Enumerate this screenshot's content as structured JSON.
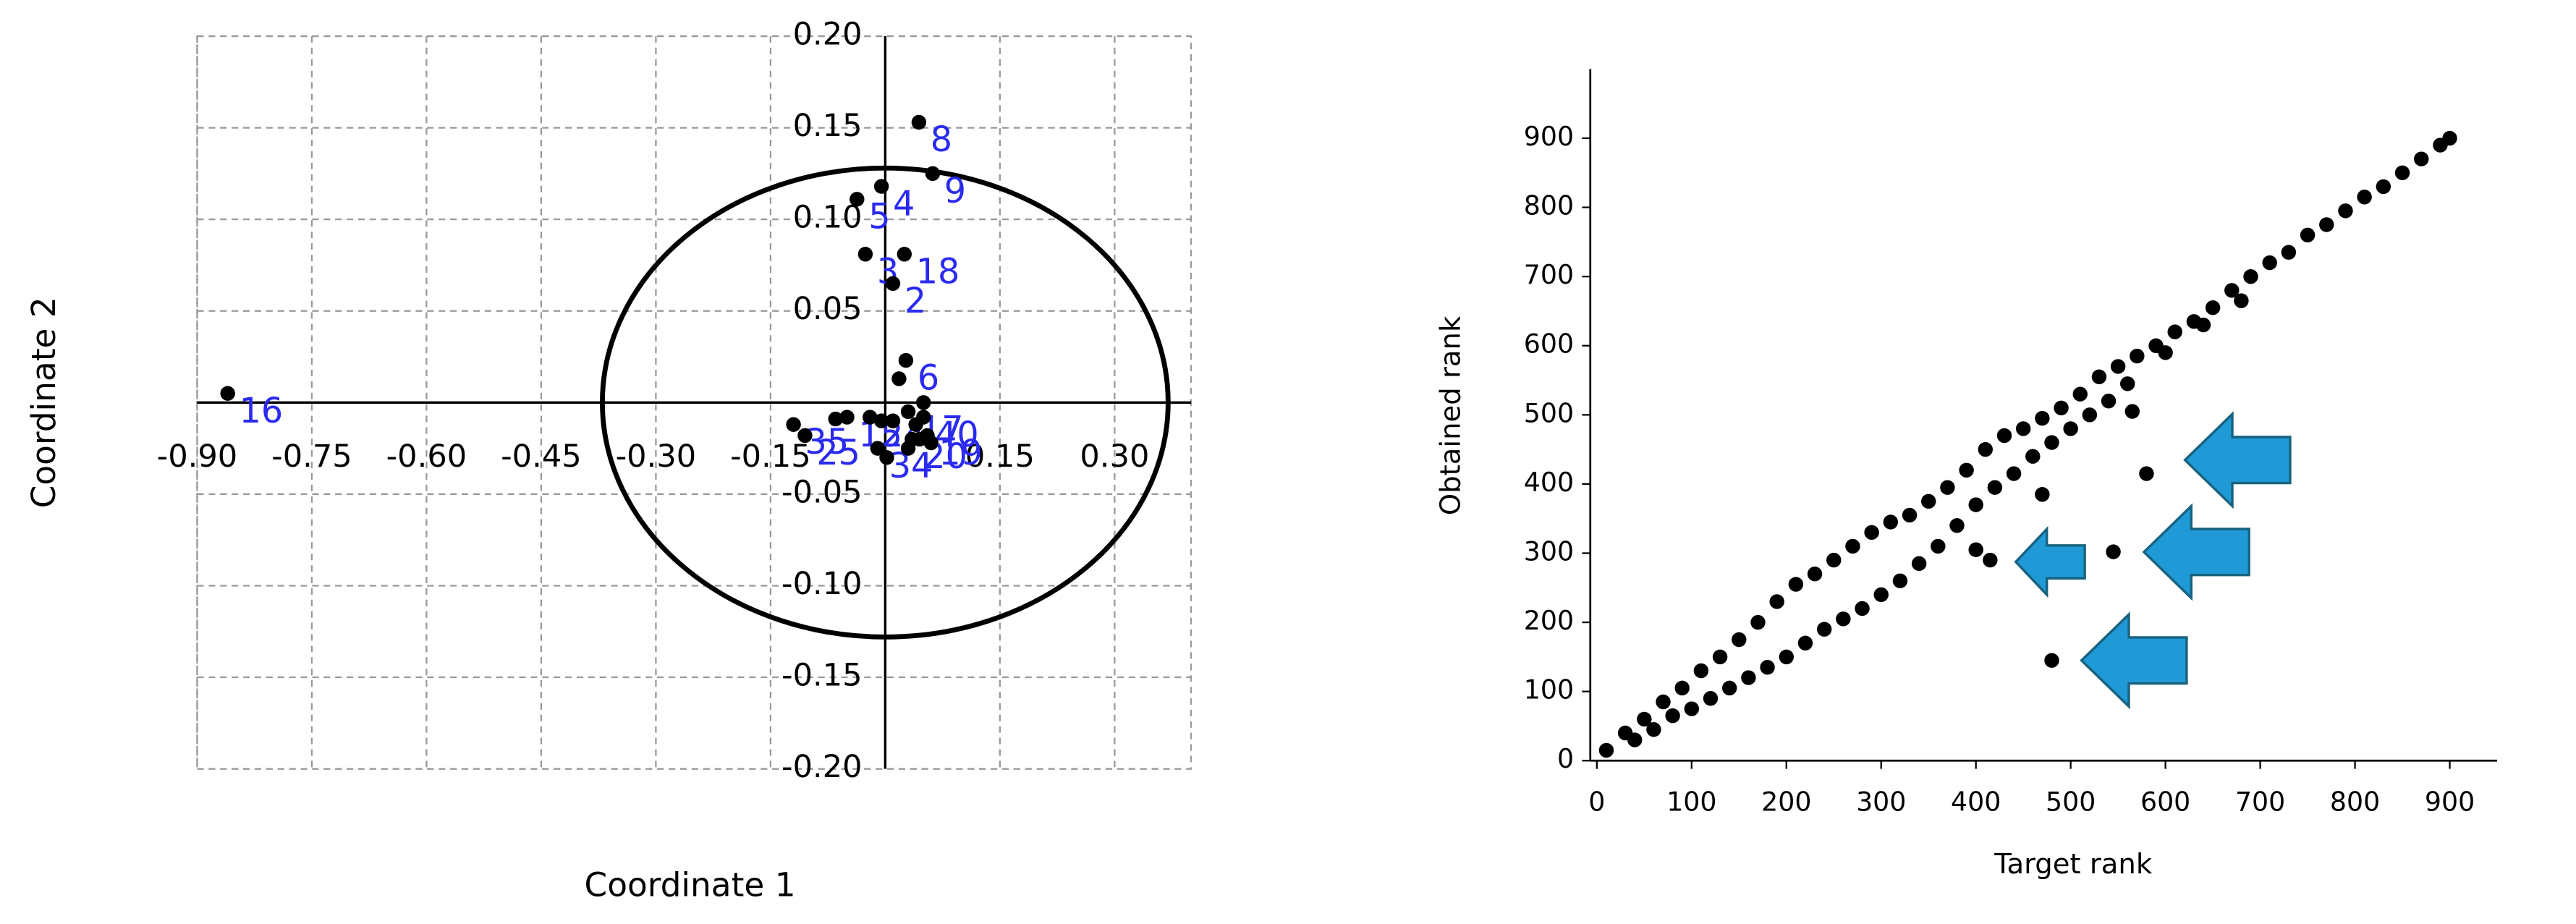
{
  "chart_data": [
    {
      "type": "scatter",
      "x_label": "Coordinate 1",
      "y_label": "Coordinate 2",
      "xlim": [
        -0.9,
        0.4
      ],
      "ylim": [
        -0.2,
        0.2
      ],
      "xticks": [
        {
          "value": -0.9,
          "label": "-0.90"
        },
        {
          "value": -0.75,
          "label": "-0.75"
        },
        {
          "value": -0.6,
          "label": "-0.60"
        },
        {
          "value": -0.45,
          "label": "-0.45"
        },
        {
          "value": -0.3,
          "label": "-0.30"
        },
        {
          "value": -0.15,
          "label": "-0.15"
        },
        {
          "value": 0.15,
          "label": "0.15"
        },
        {
          "value": 0.3,
          "label": "0.30"
        }
      ],
      "yticks": [
        {
          "value": -0.2,
          "label": "-0.20"
        },
        {
          "value": -0.15,
          "label": "-0.15"
        },
        {
          "value": -0.1,
          "label": "-0.10"
        },
        {
          "value": -0.05,
          "label": "-0.05"
        },
        {
          "value": 0.05,
          "label": "0.05"
        },
        {
          "value": 0.1,
          "label": "0.10"
        },
        {
          "value": 0.15,
          "label": "0.15"
        },
        {
          "value": 0.2,
          "label": "0.20"
        }
      ],
      "grid": true,
      "color": "#000000",
      "label_color": "#2a2af0",
      "ellipse_radii": [
        0.37,
        0.128
      ],
      "x": [
        -0.86,
        0.044,
        0.062,
        -0.037,
        -0.005,
        -0.026,
        0.025,
        0.01,
        0.027,
        0.018,
        -0.12,
        -0.105,
        -0.05,
        -0.02,
        0.03,
        0.05,
        -0.01,
        0.055,
        0.035,
        -0.065,
        -0.005,
        0.01,
        0.04,
        0.045,
        0.06,
        0.03,
        0.002,
        0.05
      ],
      "y": [
        0.005,
        0.153,
        0.125,
        0.111,
        0.118,
        0.081,
        0.081,
        0.065,
        0.023,
        0.013,
        -0.012,
        -0.018,
        -0.008,
        -0.008,
        -0.005,
        -0.008,
        -0.025,
        -0.018,
        -0.02,
        -0.009,
        -0.01,
        -0.01,
        -0.012,
        -0.02,
        -0.022,
        -0.025,
        -0.03,
        0.0
      ],
      "labels": [
        "16",
        "8",
        "9",
        "5",
        "4",
        "3",
        "18",
        "2",
        "6",
        null,
        "35",
        "25",
        "15",
        "24",
        "17",
        "40",
        "34",
        "19",
        "20",
        null,
        null,
        null,
        null,
        null,
        null,
        null,
        null,
        null
      ]
    },
    {
      "type": "scatter",
      "x_label": "Target rank",
      "y_label": "Obtained rank",
      "xlim": [
        0,
        950
      ],
      "ylim": [
        0,
        1000
      ],
      "xticks": [
        0,
        100,
        200,
        300,
        400,
        500,
        600,
        700,
        800,
        900
      ],
      "yticks": [
        0,
        100,
        200,
        300,
        400,
        500,
        600,
        700,
        800,
        900
      ],
      "grid": false,
      "color": "#000000",
      "arrow_color": "#1f9ad6",
      "x": [
        10,
        30,
        50,
        70,
        90,
        110,
        130,
        150,
        170,
        190,
        210,
        230,
        250,
        270,
        290,
        310,
        330,
        350,
        370,
        390,
        410,
        430,
        450,
        470,
        490,
        510,
        530,
        550,
        570,
        590,
        610,
        630,
        650,
        670,
        690,
        710,
        730,
        750,
        770,
        790,
        810,
        830,
        850,
        870,
        890,
        900,
        40,
        60,
        80,
        100,
        120,
        140,
        160,
        180,
        200,
        220,
        240,
        260,
        280,
        300,
        320,
        340,
        360,
        380,
        400,
        420,
        440,
        460,
        480,
        500,
        520,
        540,
        560,
        600,
        640,
        680,
        400,
        415,
        470,
        480,
        545,
        565,
        580
      ],
      "y": [
        15,
        40,
        60,
        85,
        105,
        130,
        150,
        175,
        200,
        230,
        255,
        270,
        290,
        310,
        330,
        345,
        355,
        375,
        395,
        420,
        450,
        470,
        480,
        495,
        510,
        530,
        555,
        570,
        585,
        600,
        620,
        635,
        655,
        680,
        700,
        720,
        735,
        760,
        775,
        795,
        815,
        830,
        850,
        870,
        890,
        900,
        30,
        45,
        65,
        75,
        90,
        105,
        120,
        135,
        150,
        170,
        190,
        205,
        220,
        240,
        260,
        285,
        310,
        340,
        370,
        395,
        415,
        440,
        460,
        480,
        500,
        520,
        545,
        590,
        630,
        665,
        305,
        290,
        385,
        145,
        302,
        505,
        415
      ]
    }
  ]
}
